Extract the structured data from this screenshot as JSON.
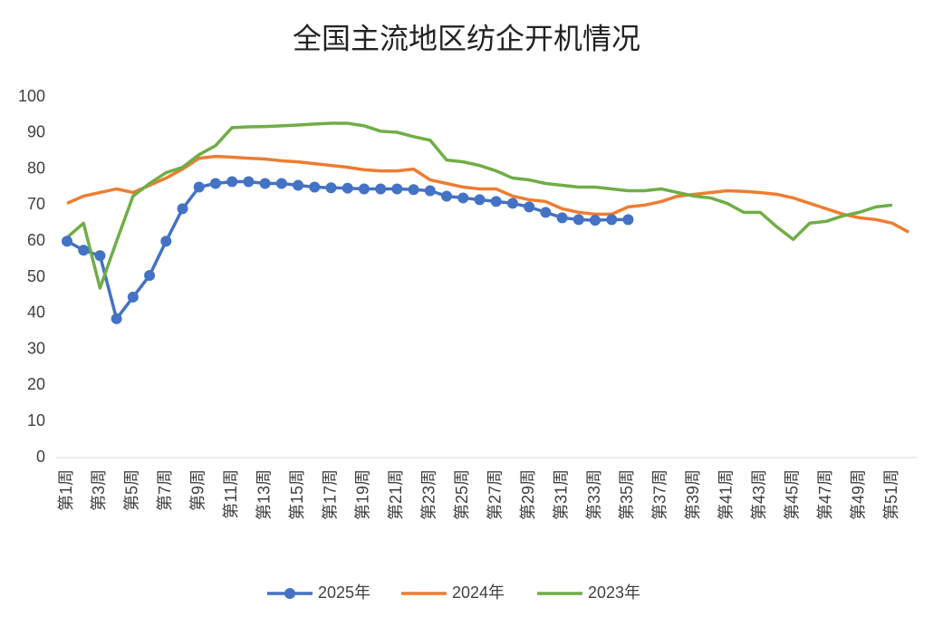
{
  "chart_data": {
    "type": "line",
    "title": "全国主流地区纺企开机情况",
    "categories": [
      "第1周",
      null,
      "第3周",
      null,
      "第5周",
      null,
      "第7周",
      null,
      "第9周",
      null,
      "第11周",
      null,
      "第13周",
      null,
      "第15周",
      null,
      "第17周",
      null,
      "第19周",
      null,
      "第21周",
      null,
      "第23周",
      null,
      "第25周",
      null,
      "第27周",
      null,
      "第29周",
      null,
      "第31周",
      null,
      "第33周",
      null,
      "第35周",
      null,
      "第37周",
      null,
      "第39周",
      null,
      "第41周",
      null,
      "第43周",
      null,
      "第45周",
      null,
      "第47周",
      null,
      "第49周",
      null,
      "第51周",
      null
    ],
    "series": [
      {
        "name": "2025年",
        "color": "#4472c4",
        "markers": true,
        "values": [
          60,
          57.5,
          56,
          38.5,
          44.5,
          50.5,
          60,
          69,
          75,
          76,
          76.5,
          76.5,
          76,
          76,
          75.5,
          75,
          74.8,
          74.7,
          74.5,
          74.5,
          74.5,
          74.3,
          74,
          72.5,
          72,
          71.5,
          71,
          70.5,
          69.5,
          68,
          66.5,
          66,
          65.8,
          66,
          66,
          null,
          null,
          null,
          null,
          null,
          null,
          null,
          null,
          null,
          null,
          null,
          null,
          null,
          null,
          null,
          null,
          null
        ]
      },
      {
        "name": "2024年",
        "color": "#ed7d31",
        "markers": false,
        "values": [
          70.5,
          72.5,
          73.5,
          74.5,
          73.5,
          75.5,
          77.5,
          80,
          83,
          83.5,
          83.3,
          83,
          82.8,
          82.3,
          82,
          81.5,
          81,
          80.5,
          79.8,
          79.5,
          79.5,
          80,
          77,
          76,
          75,
          74.5,
          74.5,
          72.5,
          71.5,
          71,
          69,
          68,
          67.5,
          67.5,
          69.5,
          70,
          71,
          72.5,
          73,
          73.5,
          74,
          73.8,
          73.5,
          73,
          72,
          70.5,
          69,
          67.5,
          66.5,
          66,
          65,
          62.5
        ]
      },
      {
        "name": "2023年",
        "color": "#70ad47",
        "markers": false,
        "values": [
          61,
          65,
          47,
          60,
          72.5,
          76,
          79,
          80.5,
          84,
          86.5,
          91.5,
          91.7,
          91.8,
          92,
          92.2,
          92.5,
          92.7,
          92.7,
          92,
          90.5,
          90.2,
          89,
          88,
          82.5,
          82,
          81,
          79.5,
          77.5,
          77,
          76,
          75.5,
          75,
          75,
          74.5,
          74,
          74,
          74.5,
          73.5,
          72.5,
          72,
          70.5,
          68,
          68,
          64,
          60.5,
          65,
          65.5,
          67,
          68,
          69.5,
          70,
          null
        ]
      }
    ],
    "ylim": [
      0,
      100
    ],
    "yticks": [
      0,
      10,
      20,
      30,
      40,
      50,
      60,
      70,
      80,
      90,
      100
    ]
  }
}
